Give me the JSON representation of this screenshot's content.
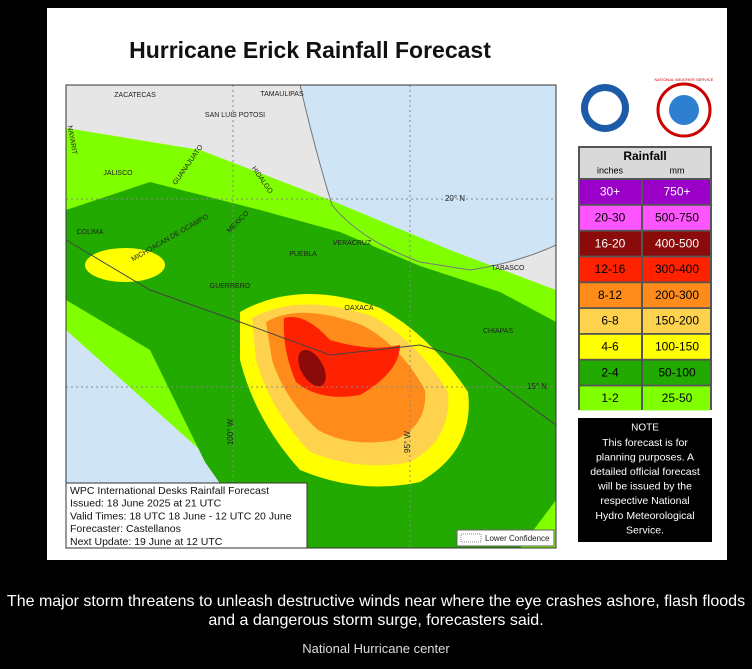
{
  "header": {
    "title": "Hurricane Erick Rainfall Forecast"
  },
  "logos": {
    "noaa": "NOAA",
    "nws": "NATIONAL WEATHER SERVICE"
  },
  "map": {
    "labels": [
      "ZACATECAS",
      "TAMAULIPAS",
      "SAN LUIS POTOSI",
      "NAYARIT",
      "JALISCO",
      "GUANAJUATO",
      "HIDALGO",
      "COLIMA",
      "MICHOACAN DE OCAMPO",
      "MEXICO",
      "VERACRUZ",
      "PUEBLA",
      "GUERRERO",
      "OAXACA",
      "TABASCO",
      "CHIAPAS"
    ],
    "gridlines": [
      "20° N",
      "15° N",
      "100° W",
      "95° W"
    ]
  },
  "legend": {
    "title": "Rainfall",
    "units": [
      "inches",
      "mm"
    ],
    "rows": [
      {
        "inches": "30+",
        "mm": "750+",
        "color": "#9b00c8",
        "text_color": "#ffffff"
      },
      {
        "inches": "20-30",
        "mm": "500-750",
        "color": "#ff55ff",
        "text_color": "#000000"
      },
      {
        "inches": "16-20",
        "mm": "400-500",
        "color": "#8b0a0a",
        "text_color": "#ffffff"
      },
      {
        "inches": "12-16",
        "mm": "300-400",
        "color": "#ff2200",
        "text_color": "#000000"
      },
      {
        "inches": "8-12",
        "mm": "200-300",
        "color": "#ff8c1a",
        "text_color": "#000000"
      },
      {
        "inches": "6-8",
        "mm": "150-200",
        "color": "#ffd24d",
        "text_color": "#000000"
      },
      {
        "inches": "4-6",
        "mm": "100-150",
        "color": "#ffff00",
        "text_color": "#000000"
      },
      {
        "inches": "2-4",
        "mm": "50-100",
        "color": "#22aa00",
        "text_color": "#000000"
      },
      {
        "inches": "1-2",
        "mm": "25-50",
        "color": "#80ff00",
        "text_color": "#000000"
      }
    ]
  },
  "note": {
    "title": "NOTE",
    "lines": [
      "This forecast is for",
      "planning purposes. A",
      "detailed official forecast",
      "will be issued by the",
      "respective National",
      "Hydro Meteorological",
      "Service."
    ]
  },
  "info": {
    "lines": [
      "WPC International Desks Rainfall Forecast",
      "Issued: 18 June 2025 at 21 UTC",
      "Valid Times: 18 UTC 18 June - 12 UTC 20 June",
      "Forecaster: Castellanos",
      "Next Update: 19 June at 12 UTC"
    ]
  },
  "lower_confidence": "Lower Confidence",
  "caption": "The major storm threatens to unleash destructive winds near where the eye crashes ashore, flash floods and a dangerous storm surge, forecasters said.",
  "credit": "National Hurricane center"
}
